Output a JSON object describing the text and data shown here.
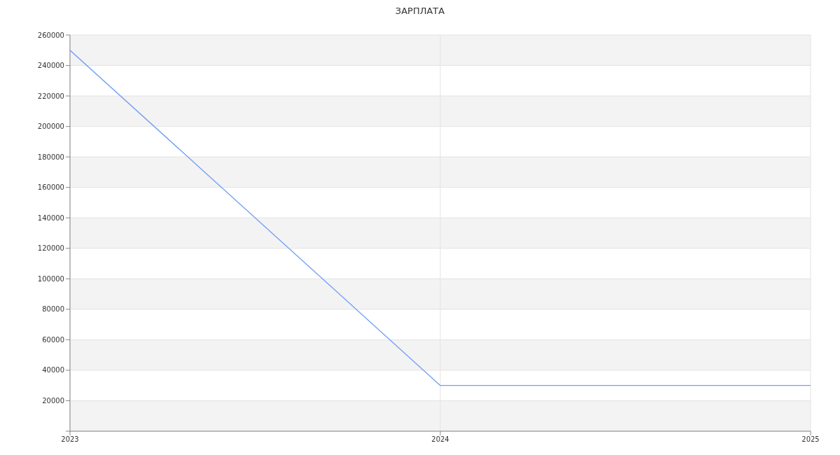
{
  "chart_data": {
    "type": "line",
    "title": "ЗАРПЛАТА",
    "x": [
      2023,
      2024,
      2025
    ],
    "values": [
      250000,
      30000,
      30000
    ],
    "color": "#6f9ef5",
    "xlim": [
      2023,
      2025
    ],
    "xticks": [
      2023,
      2024,
      2025
    ],
    "ylim": [
      0,
      260000
    ],
    "yticks": [
      {
        "value": 0,
        "label": null
      },
      20000,
      40000,
      60000,
      80000,
      100000,
      120000,
      140000,
      160000,
      180000,
      200000,
      220000,
      240000,
      260000
    ],
    "grid": true
  }
}
